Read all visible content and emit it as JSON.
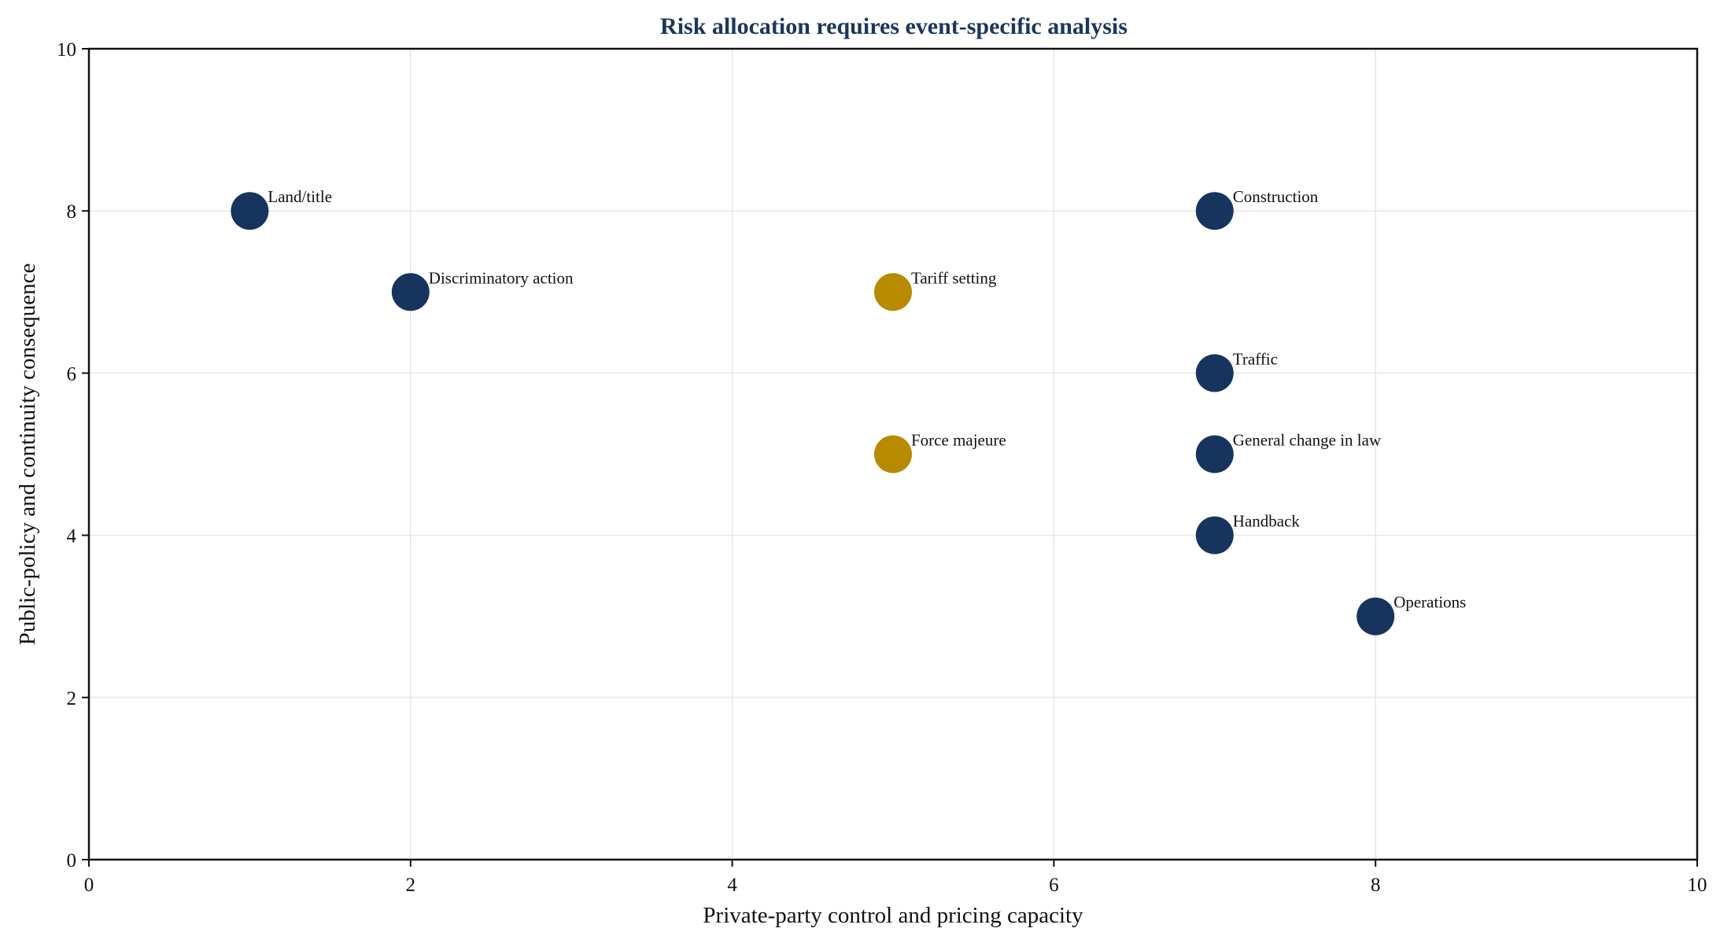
{
  "chart_data": {
    "type": "scatter",
    "title": "Risk allocation requires event-specific analysis",
    "xlabel": "Private-party control and pricing capacity",
    "ylabel": "Public-policy and continuity consequence",
    "xlim": [
      0,
      10
    ],
    "ylim": [
      0,
      10
    ],
    "xticks": [
      "0",
      "2",
      "4",
      "6",
      "8",
      "10"
    ],
    "yticks": [
      "0",
      "2",
      "4",
      "6",
      "8",
      "10"
    ],
    "grid": true,
    "legend": "none",
    "colors": {
      "title": "#1c365c",
      "navy": "#17345e",
      "gold": "#b88a00"
    },
    "points": [
      {
        "label": "Land/title",
        "x": 1,
        "y": 8,
        "color": "navy"
      },
      {
        "label": "Discriminatory action",
        "x": 2,
        "y": 7,
        "color": "navy"
      },
      {
        "label": "Tariff setting",
        "x": 5,
        "y": 7,
        "color": "gold"
      },
      {
        "label": "Force majeure",
        "x": 5,
        "y": 5,
        "color": "gold"
      },
      {
        "label": "Construction",
        "x": 7,
        "y": 8,
        "color": "navy"
      },
      {
        "label": "Traffic",
        "x": 7,
        "y": 6,
        "color": "navy"
      },
      {
        "label": "General change in law",
        "x": 7,
        "y": 5,
        "color": "navy"
      },
      {
        "label": "Handback",
        "x": 7,
        "y": 4,
        "color": "navy"
      },
      {
        "label": "Operations",
        "x": 8,
        "y": 3,
        "color": "navy"
      }
    ]
  }
}
